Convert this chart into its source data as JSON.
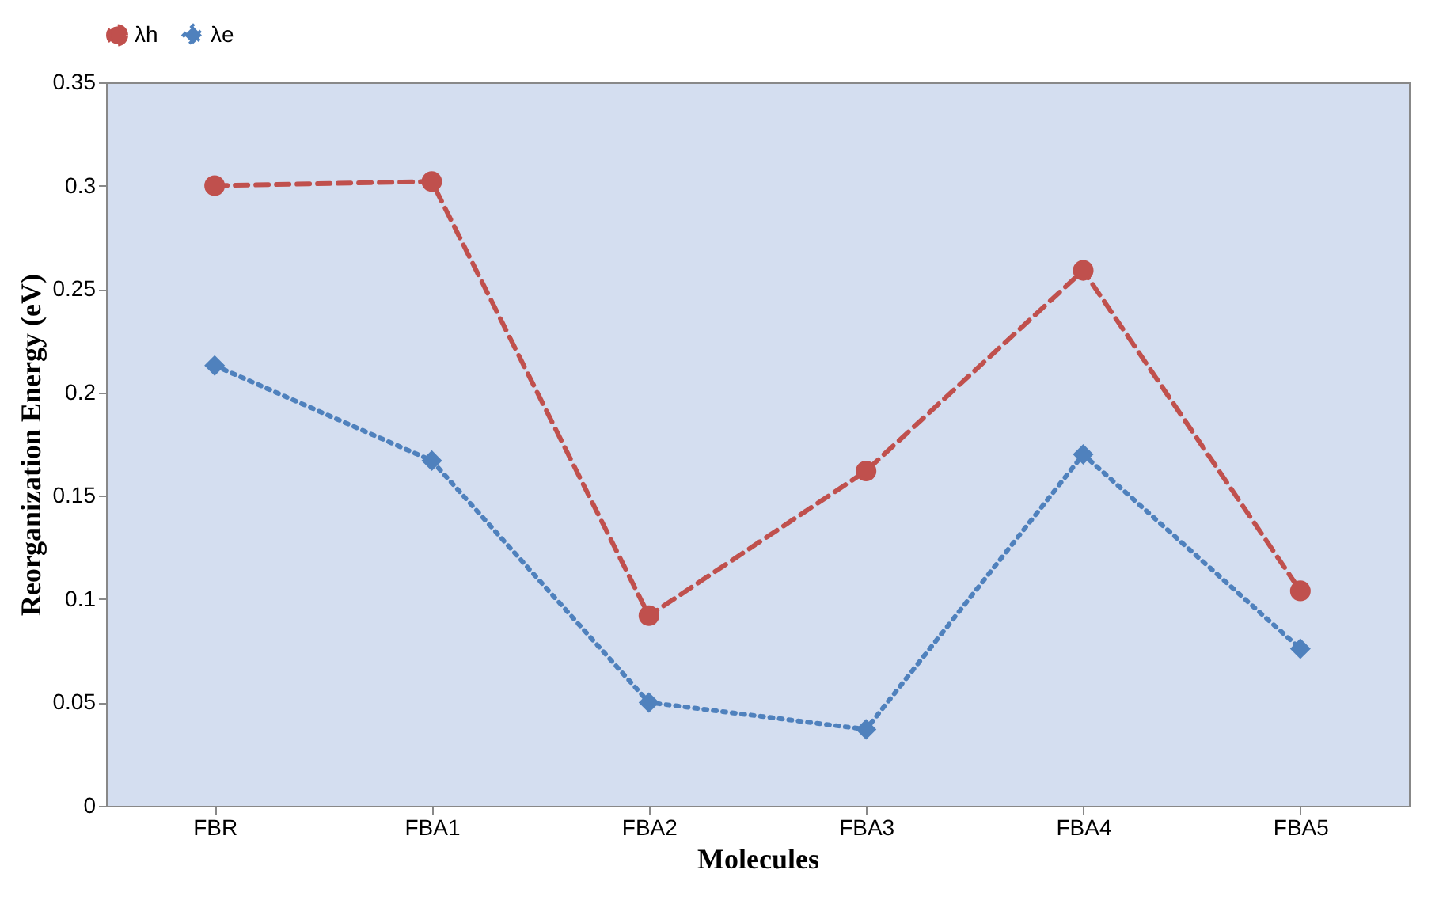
{
  "chart_data": {
    "type": "line",
    "xlabel": "Molecules",
    "ylabel": "Reorganization Energy (eV)",
    "categories": [
      "FBR",
      "FBA1",
      "FBA2",
      "FBA3",
      "FBA4",
      "FBA5"
    ],
    "series": [
      {
        "name": "λh",
        "color": "#c0504d",
        "marker": "circle",
        "line_style": "dashed",
        "values": [
          0.3,
          0.302,
          0.092,
          0.162,
          0.259,
          0.104
        ]
      },
      {
        "name": "λe",
        "color": "#4f81bd",
        "marker": "diamond",
        "line_style": "dotted",
        "values": [
          0.213,
          0.167,
          0.05,
          0.037,
          0.17,
          0.076
        ]
      }
    ],
    "ylim": [
      0,
      0.35
    ],
    "yticks": [
      0,
      0.05,
      0.1,
      0.15,
      0.2,
      0.25,
      0.3,
      0.35
    ],
    "grid": false,
    "legend": "top"
  }
}
